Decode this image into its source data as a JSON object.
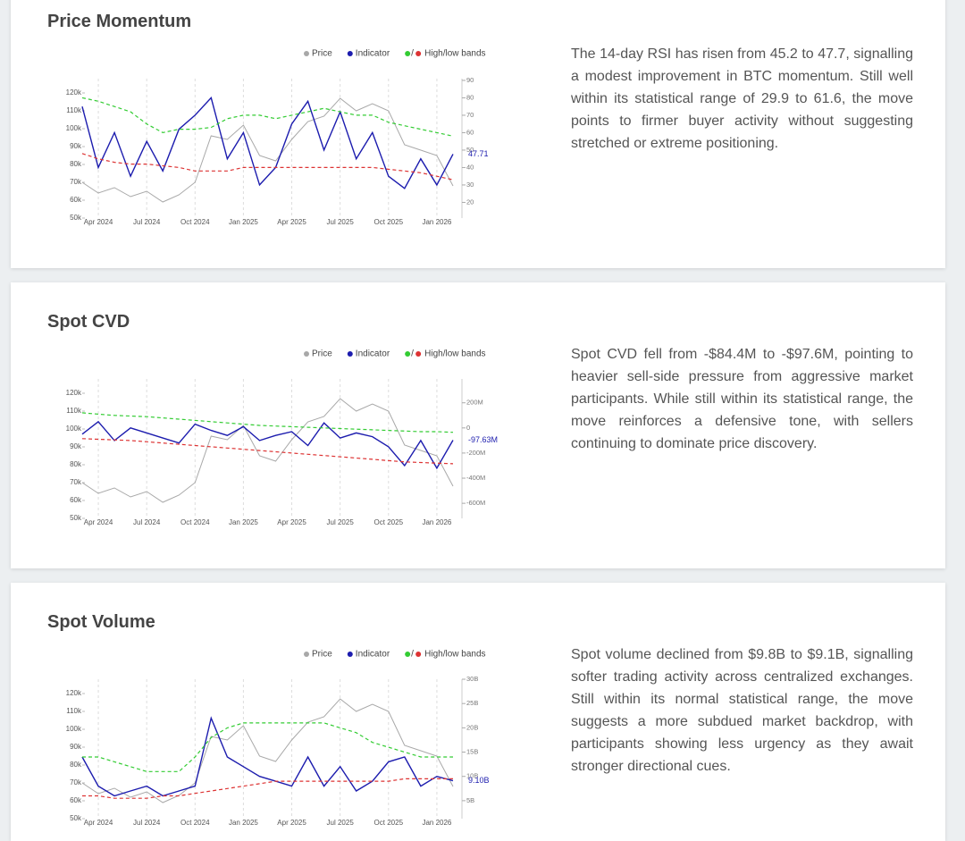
{
  "chart_data": [
    {
      "type": "line",
      "title": "Price Momentum",
      "text": "The 14-day RSI has risen from 45.2 to 47.7, signalling a modest improvement in BTC momentum. Still well within its statistical range of 29.9 to 61.6, the move points to firmer buyer activity without suggesting stretched or extreme positioning.",
      "x": [
        "2024-03",
        "2024-04",
        "2024-05",
        "2024-06",
        "2024-07",
        "2024-08",
        "2024-09",
        "2024-10",
        "2024-11",
        "2024-12",
        "2025-01",
        "2025-02",
        "2025-03",
        "2025-04",
        "2025-05",
        "2025-06",
        "2025-07",
        "2025-08",
        "2025-09",
        "2025-10",
        "2025-11",
        "2025-12",
        "2026-01",
        "2026-02"
      ],
      "xlim": [
        "2024-03",
        "2026-03"
      ],
      "xticks": [
        {
          "value": "2024-04",
          "label": "Apr 2024"
        },
        {
          "value": "2024-07",
          "label": "Jul 2024"
        },
        {
          "value": "2024-10",
          "label": "Oct 2024"
        },
        {
          "value": "2025-01",
          "label": "Jan 2025"
        },
        {
          "value": "2025-04",
          "label": "Apr 2025"
        },
        {
          "value": "2025-07",
          "label": "Jul 2025"
        },
        {
          "value": "2025-10",
          "label": "Oct 2025"
        },
        {
          "value": "2026-01",
          "label": "Jan 2026"
        }
      ],
      "ylim": [
        50000,
        128000
      ],
      "yticks": [
        {
          "value": 50000,
          "label": "50k"
        },
        {
          "value": 60000,
          "label": "60k"
        },
        {
          "value": 70000,
          "label": "70k"
        },
        {
          "value": 80000,
          "label": "80k"
        },
        {
          "value": 90000,
          "label": "90k"
        },
        {
          "value": 100000,
          "label": "100k"
        },
        {
          "value": 110000,
          "label": "110k"
        },
        {
          "value": 120000,
          "label": "120k"
        }
      ],
      "y2lim": [
        11,
        91
      ],
      "y2ticks": [
        20,
        30,
        40,
        50,
        60,
        70,
        80,
        90
      ],
      "grid": true,
      "series": [
        {
          "name": "Price",
          "color": "#a8a8a8",
          "values": [
            70000,
            64000,
            67000,
            62000,
            65000,
            59000,
            63000,
            70000,
            96000,
            94000,
            102000,
            85000,
            82000,
            94000,
            104000,
            107000,
            117000,
            110000,
            114000,
            110000,
            91000,
            88000,
            85000,
            68000
          ]
        },
        {
          "name": "Indicator",
          "color": "#1c1cae",
          "axis": "y2",
          "values": [
            75,
            40,
            60,
            35,
            55,
            38,
            62,
            70,
            80,
            45,
            60,
            30,
            40,
            65,
            78,
            50,
            72,
            45,
            60,
            35,
            28,
            45,
            30,
            47.71
          ],
          "value_labels": [
            null,
            null,
            null,
            null,
            null,
            null,
            null,
            null,
            null,
            null,
            null,
            null,
            null,
            null,
            null,
            null,
            null,
            null,
            null,
            null,
            null,
            null,
            null,
            "47.71"
          ]
        }
      ],
      "bands": {
        "name": "High/low bands",
        "axis": "y2",
        "high": {
          "color": "#33cc33",
          "values": [
            80,
            78,
            75,
            72,
            65,
            60,
            62,
            62,
            63,
            68,
            70,
            70,
            68,
            70,
            72,
            74,
            72,
            70,
            70,
            66,
            64,
            62,
            60,
            58
          ]
        },
        "low": {
          "color": "#dd3333",
          "values": [
            48,
            45,
            43,
            42,
            42,
            41,
            40,
            38,
            38,
            38,
            40,
            40,
            40,
            40,
            40,
            40,
            40,
            40,
            40,
            39,
            38,
            37,
            35,
            33
          ]
        }
      }
    },
    {
      "type": "line",
      "title": "Spot CVD",
      "text": "Spot CVD fell from -$84.4M to -$97.6M, pointing to heavier sell-side pressure from aggressive market participants. While still within its statistical range, the move reinforces a defensive tone, with sellers continuing to dominate price discovery.",
      "x": [
        "2024-03",
        "2024-04",
        "2024-05",
        "2024-06",
        "2024-07",
        "2024-08",
        "2024-09",
        "2024-10",
        "2024-11",
        "2024-12",
        "2025-01",
        "2025-02",
        "2025-03",
        "2025-04",
        "2025-05",
        "2025-06",
        "2025-07",
        "2025-08",
        "2025-09",
        "2025-10",
        "2025-11",
        "2025-12",
        "2026-01",
        "2026-02"
      ],
      "xlim": [
        "2024-03",
        "2026-03"
      ],
      "xticks": [
        {
          "value": "2024-04",
          "label": "Apr 2024"
        },
        {
          "value": "2024-07",
          "label": "Jul 2024"
        },
        {
          "value": "2024-10",
          "label": "Oct 2024"
        },
        {
          "value": "2025-01",
          "label": "Jan 2025"
        },
        {
          "value": "2025-04",
          "label": "Apr 2025"
        },
        {
          "value": "2025-07",
          "label": "Jul 2025"
        },
        {
          "value": "2025-10",
          "label": "Oct 2025"
        },
        {
          "value": "2026-01",
          "label": "Jan 2026"
        }
      ],
      "ylim": [
        50000,
        128000
      ],
      "yticks": [
        {
          "value": 50000,
          "label": "50k"
        },
        {
          "value": 60000,
          "label": "60k"
        },
        {
          "value": 70000,
          "label": "70k"
        },
        {
          "value": 80000,
          "label": "80k"
        },
        {
          "value": 90000,
          "label": "90k"
        },
        {
          "value": 100000,
          "label": "100k"
        },
        {
          "value": 110000,
          "label": "110k"
        },
        {
          "value": 120000,
          "label": "120k"
        }
      ],
      "y2lim": [
        -720,
        390
      ],
      "y2ticks": [
        {
          "value": 200,
          "label": "200M"
        },
        0,
        {
          "value": -200,
          "label": "-200M"
        },
        {
          "value": -400,
          "label": "-400M"
        },
        {
          "value": -600,
          "label": "-600M"
        }
      ],
      "grid": true,
      "series": [
        {
          "name": "Price",
          "color": "#a8a8a8",
          "values": [
            70000,
            64000,
            67000,
            62000,
            65000,
            59000,
            63000,
            70000,
            96000,
            94000,
            102000,
            85000,
            82000,
            94000,
            104000,
            107000,
            117000,
            110000,
            114000,
            110000,
            91000,
            88000,
            85000,
            68000
          ]
        },
        {
          "name": "Indicator",
          "color": "#1c1cae",
          "axis": "y2",
          "values": [
            -50,
            50,
            -100,
            0,
            -40,
            -80,
            -120,
            30,
            -20,
            -60,
            10,
            -100,
            -60,
            -30,
            -140,
            40,
            -80,
            -40,
            -70,
            -150,
            -300,
            -100,
            -320,
            -97.63
          ],
          "value_labels": [
            null,
            null,
            null,
            null,
            null,
            null,
            null,
            null,
            null,
            null,
            null,
            null,
            null,
            null,
            null,
            null,
            null,
            null,
            null,
            null,
            null,
            null,
            null,
            "-97.63M"
          ]
        }
      ],
      "bands": {
        "name": "High/low bands",
        "axis": "y2",
        "high": {
          "color": "#33cc33",
          "values": [
            120,
            110,
            100,
            95,
            90,
            80,
            70,
            60,
            50,
            40,
            30,
            20,
            15,
            10,
            5,
            0,
            -5,
            -10,
            -15,
            -20,
            -25,
            -30,
            -30,
            -35
          ]
        },
        "low": {
          "color": "#dd3333",
          "values": [
            -85,
            -90,
            -95,
            -100,
            -110,
            -120,
            -130,
            -140,
            -150,
            -160,
            -170,
            -180,
            -190,
            -200,
            -210,
            -220,
            -230,
            -240,
            -250,
            -260,
            -270,
            -275,
            -280,
            -285
          ]
        }
      }
    },
    {
      "type": "line",
      "title": "Spot Volume",
      "text": "Spot volume declined from $9.8B to $9.1B, signalling softer trading activity across centralized exchanges. Still within its normal statistical range, the move suggests a more subdued market backdrop, with participants showing less urgency as they await stronger directional cues.",
      "x": [
        "2024-03",
        "2024-04",
        "2024-05",
        "2024-06",
        "2024-07",
        "2024-08",
        "2024-09",
        "2024-10",
        "2024-11",
        "2024-12",
        "2025-01",
        "2025-02",
        "2025-03",
        "2025-04",
        "2025-05",
        "2025-06",
        "2025-07",
        "2025-08",
        "2025-09",
        "2025-10",
        "2025-11",
        "2025-12",
        "2026-01",
        "2026-02"
      ],
      "xlim": [
        "2024-03",
        "2026-03"
      ],
      "xticks": [
        {
          "value": "2024-04",
          "label": "Apr 2024"
        },
        {
          "value": "2024-07",
          "label": "Jul 2024"
        },
        {
          "value": "2024-10",
          "label": "Oct 2024"
        },
        {
          "value": "2025-01",
          "label": "Jan 2025"
        },
        {
          "value": "2025-04",
          "label": "Apr 2025"
        },
        {
          "value": "2025-07",
          "label": "Jul 2025"
        },
        {
          "value": "2025-10",
          "label": "Oct 2025"
        },
        {
          "value": "2026-01",
          "label": "Jan 2026"
        }
      ],
      "ylim": [
        50000,
        128000
      ],
      "yticks": [
        {
          "value": 50000,
          "label": "50k"
        },
        {
          "value": 60000,
          "label": "60k"
        },
        {
          "value": 70000,
          "label": "70k"
        },
        {
          "value": 80000,
          "label": "80k"
        },
        {
          "value": 90000,
          "label": "90k"
        },
        {
          "value": 100000,
          "label": "100k"
        },
        {
          "value": 110000,
          "label": "110k"
        },
        {
          "value": 120000,
          "label": "120k"
        }
      ],
      "y2lim": [
        1.3,
        30
      ],
      "y2ticks": [
        {
          "value": 5,
          "label": "5B"
        },
        {
          "value": 10,
          "label": "10B"
        },
        {
          "value": 15,
          "label": "15B"
        },
        {
          "value": 20,
          "label": "20B"
        },
        {
          "value": 25,
          "label": "25B"
        },
        {
          "value": 30,
          "label": "30B"
        }
      ],
      "grid": true,
      "series": [
        {
          "name": "Price",
          "color": "#a8a8a8",
          "values": [
            70000,
            64000,
            67000,
            62000,
            65000,
            59000,
            63000,
            70000,
            96000,
            94000,
            102000,
            85000,
            82000,
            94000,
            104000,
            107000,
            117000,
            110000,
            114000,
            110000,
            91000,
            88000,
            85000,
            68000
          ]
        },
        {
          "name": "Indicator",
          "color": "#1c1cae",
          "axis": "y2",
          "values": [
            14,
            8,
            6,
            7,
            8,
            6,
            7,
            8,
            22,
            14,
            12,
            10,
            9,
            8,
            14,
            8,
            12,
            7,
            9,
            13,
            14,
            8,
            10,
            9.1
          ],
          "value_labels": [
            null,
            null,
            null,
            null,
            null,
            null,
            null,
            null,
            null,
            null,
            null,
            null,
            null,
            null,
            null,
            null,
            null,
            null,
            null,
            null,
            null,
            null,
            null,
            "9.10B"
          ]
        }
      ],
      "bands": {
        "name": "High/low bands",
        "axis": "y2",
        "high": {
          "color": "#33cc33",
          "values": [
            14,
            14,
            13,
            12,
            11,
            11,
            11,
            14,
            18,
            20,
            21,
            21,
            21,
            21,
            21,
            21,
            20,
            19,
            17,
            16,
            15,
            14,
            14,
            14
          ]
        },
        "low": {
          "color": "#dd3333",
          "values": [
            6,
            6,
            5.5,
            5.5,
            5.5,
            6,
            6,
            6.5,
            7,
            7.5,
            8,
            8.5,
            9,
            9,
            9,
            9,
            9,
            9,
            9,
            9,
            9.5,
            9.5,
            9.5,
            9.5
          ]
        }
      }
    }
  ]
}
